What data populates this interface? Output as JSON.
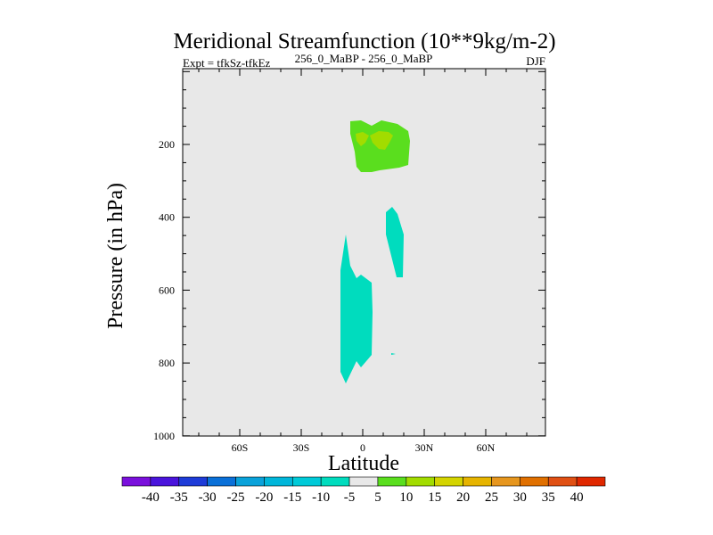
{
  "chart_data": {
    "type": "heatmap",
    "subtype": "filled-contour",
    "title": "Meridional Streamfunction (10**9kg/m-2)",
    "left_subtitle": "Expt = tfkSz-tfkEz",
    "center_subtitle": "256_0_MaBP - 256_0_MaBP",
    "right_subtitle": "DJF",
    "xlabel": "Latitude",
    "ylabel": "Pressure (in hPa)",
    "x_ticks": [
      "60S",
      "30S",
      "0",
      "30N",
      "60N"
    ],
    "x_tick_values": [
      -60,
      -30,
      0,
      30,
      60
    ],
    "y_ticks": [
      "200",
      "400",
      "600",
      "800",
      "1000"
    ],
    "y_tick_values": [
      200,
      400,
      600,
      800,
      1000
    ],
    "ylim": [
      1000,
      0
    ],
    "colorbar": {
      "labels": [
        "-40",
        "-35",
        "-30",
        "-25",
        "-20",
        "-15",
        "-10",
        "-5",
        "5",
        "10",
        "15",
        "20",
        "25",
        "30",
        "35",
        "40"
      ],
      "colors": [
        "#7a10dc",
        "#4a14dc",
        "#1e3cd8",
        "#0a70d8",
        "#0aa2da",
        "#00b6da",
        "#00cad8",
        "#00dcbe",
        "#e8e8e8",
        "#5ade1e",
        "#a2dc00",
        "#d4d400",
        "#e6b400",
        "#e6961e",
        "#e07000",
        "#e05014",
        "#e02800"
      ]
    },
    "features": [
      {
        "level": "5 to 10",
        "region": "upper tropics, ~5S-22N, ~130-290 hPa",
        "color": "#5ade1e"
      },
      {
        "level": "10 to 15",
        "region": "two cores near 200 hPa, ~3S and ~10N",
        "color": "#a2dc00"
      },
      {
        "level": "-10 to -5",
        "region": "~12N-20N, 370-570 hPa",
        "color": "#00dcbe"
      },
      {
        "level": "-10 to -5",
        "region": "~12S-5N, 450-850 hPa",
        "color": "#00dcbe"
      }
    ]
  }
}
